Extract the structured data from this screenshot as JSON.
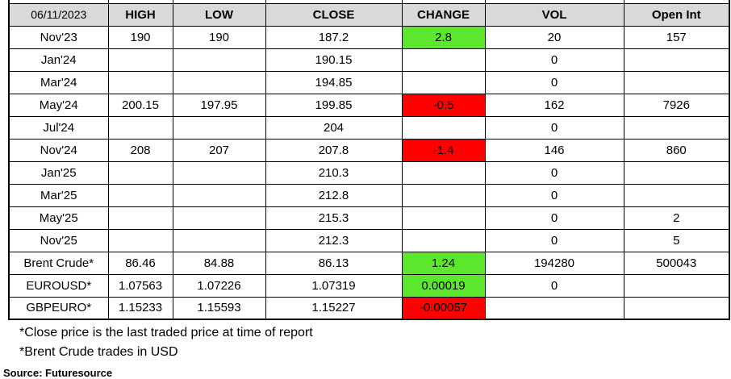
{
  "table": {
    "date_header": "06/11/2023",
    "columns": [
      "HIGH",
      "LOW",
      "CLOSE",
      "CHANGE",
      "VOL",
      "Open Int"
    ],
    "rows": [
      {
        "label": "Nov'23",
        "high": "190",
        "low": "190",
        "close": "187.2",
        "change": "2.8",
        "change_color": "positive",
        "vol": "20",
        "open_int": "157"
      },
      {
        "label": "Jan'24",
        "high": "",
        "low": "",
        "close": "190.15",
        "change": "",
        "change_color": "",
        "vol": "0",
        "open_int": ""
      },
      {
        "label": "Mar'24",
        "high": "",
        "low": "",
        "close": "194.85",
        "change": "",
        "change_color": "",
        "vol": "0",
        "open_int": ""
      },
      {
        "label": "May'24",
        "high": "200.15",
        "low": "197.95",
        "close": "199.85",
        "change": "-0.5",
        "change_color": "negative",
        "vol": "162",
        "open_int": "7926"
      },
      {
        "label": "Jul'24",
        "high": "",
        "low": "",
        "close": "204",
        "change": "",
        "change_color": "",
        "vol": "0",
        "open_int": ""
      },
      {
        "label": "Nov'24",
        "high": "208",
        "low": "207",
        "close": "207.8",
        "change": "-1.4",
        "change_color": "negative",
        "vol": "146",
        "open_int": "860"
      },
      {
        "label": "Jan'25",
        "high": "",
        "low": "",
        "close": "210.3",
        "change": "",
        "change_color": "",
        "vol": "0",
        "open_int": ""
      },
      {
        "label": "Mar'25",
        "high": "",
        "low": "",
        "close": "212.8",
        "change": "",
        "change_color": "",
        "vol": "0",
        "open_int": ""
      },
      {
        "label": "May'25",
        "high": "",
        "low": "",
        "close": "215.3",
        "change": "",
        "change_color": "",
        "vol": "0",
        "open_int": "2"
      },
      {
        "label": "Nov'25",
        "high": "",
        "low": "",
        "close": "212.3",
        "change": "",
        "change_color": "",
        "vol": "0",
        "open_int": "5"
      },
      {
        "label": "Brent Crude*",
        "high": "86.46",
        "low": "84.88",
        "close": "86.13",
        "change": "1.24",
        "change_color": "positive",
        "vol": "194280",
        "open_int": "500043"
      },
      {
        "label": "EUROUSD*",
        "high": "1.07563",
        "low": "1.07226",
        "close": "1.07319",
        "change": "0.00019",
        "change_color": "positive",
        "vol": "0",
        "open_int": ""
      },
      {
        "label": "GBPEURO*",
        "high": "1.15233",
        "low": "1.15593",
        "close": "1.15227",
        "change": "-0.00057",
        "change_color": "negative",
        "vol": "",
        "open_int": ""
      }
    ]
  },
  "footnotes": [
    "*Close price is the last traded price at time of report",
    "*Brent Crude trades in USD"
  ],
  "source": "Source: Futuresource",
  "colors": {
    "positive": "#5CE62E",
    "negative": "#FE0000",
    "header_bg": "#D9D9D9"
  }
}
